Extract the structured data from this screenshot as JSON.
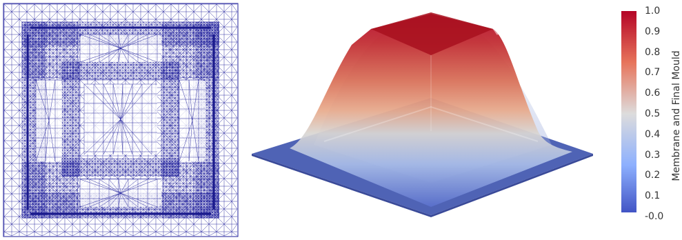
{
  "colors": {
    "mesh_line": "#1c1c9a",
    "mesh_dense": "#1a1a8c",
    "flat_plane": "#4f63b5",
    "cmap_low": "#3b4cc0",
    "cmap_mid": "#dddcdc",
    "cmap_high": "#b40426"
  },
  "colorbar": {
    "title": "Membrane and Final Mould",
    "ticks": [
      "1.0",
      "0.9",
      "0.8",
      "0.7",
      "0.6",
      "0.5",
      "0.4",
      "0.3",
      "0.2",
      "0.1",
      "-0.0"
    ]
  }
}
